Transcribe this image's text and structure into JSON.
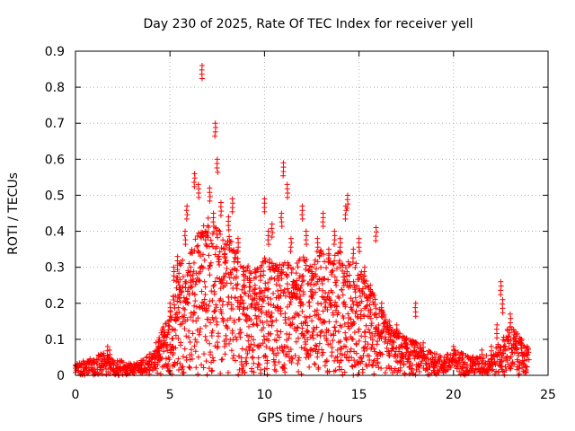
{
  "chart_data": {
    "type": "scatter",
    "title": "Day 230 of 2025, Rate Of TEC Index for receiver yell",
    "xlabel": "GPS time / hours",
    "ylabel": "ROTI / TECUs",
    "xlim": [
      0,
      25
    ],
    "ylim": [
      0,
      0.9
    ],
    "xticks": [
      "0",
      "5",
      "10",
      "15",
      "20",
      "25"
    ],
    "yticks": [
      "0",
      "0.1",
      "0.2",
      "0.3",
      "0.4",
      "0.5",
      "0.6",
      "0.7",
      "0.8",
      "0.9"
    ],
    "grid": true,
    "marker": "+",
    "color": "#ff0000",
    "series": [
      {
        "values": [
          [
            0.0,
            0.02
          ],
          [
            0.3,
            0.01
          ],
          [
            0.6,
            0.03
          ],
          [
            1.0,
            0.02
          ],
          [
            1.4,
            0.04
          ],
          [
            1.7,
            0.08
          ],
          [
            1.8,
            0.07
          ],
          [
            2.2,
            0.03
          ],
          [
            2.7,
            0.03
          ],
          [
            3.1,
            0.02
          ],
          [
            3.5,
            0.03
          ],
          [
            3.9,
            0.04
          ],
          [
            4.2,
            0.06
          ],
          [
            4.4,
            0.08
          ],
          [
            4.7,
            0.12
          ],
          [
            4.9,
            0.15
          ],
          [
            5.0,
            0.2
          ],
          [
            5.2,
            0.3
          ],
          [
            5.4,
            0.33
          ],
          [
            5.5,
            0.25
          ],
          [
            5.8,
            0.4
          ],
          [
            5.9,
            0.47
          ],
          [
            6.1,
            0.3
          ],
          [
            6.3,
            0.56
          ],
          [
            6.5,
            0.53
          ],
          [
            6.7,
            0.86
          ],
          [
            6.9,
            0.4
          ],
          [
            7.1,
            0.52
          ],
          [
            7.3,
            0.45
          ],
          [
            7.4,
            0.7
          ],
          [
            7.5,
            0.6
          ],
          [
            7.7,
            0.48
          ],
          [
            7.9,
            0.35
          ],
          [
            8.1,
            0.44
          ],
          [
            8.3,
            0.49
          ],
          [
            8.6,
            0.38
          ],
          [
            8.9,
            0.3
          ],
          [
            9.2,
            0.27
          ],
          [
            9.5,
            0.25
          ],
          [
            9.8,
            0.3
          ],
          [
            10.0,
            0.49
          ],
          [
            10.2,
            0.4
          ],
          [
            10.4,
            0.42
          ],
          [
            10.7,
            0.3
          ],
          [
            10.9,
            0.45
          ],
          [
            11.0,
            0.59
          ],
          [
            11.2,
            0.53
          ],
          [
            11.4,
            0.38
          ],
          [
            11.7,
            0.25
          ],
          [
            12.0,
            0.47
          ],
          [
            12.2,
            0.4
          ],
          [
            12.5,
            0.3
          ],
          [
            12.8,
            0.38
          ],
          [
            13.1,
            0.45
          ],
          [
            13.4,
            0.35
          ],
          [
            13.7,
            0.4
          ],
          [
            14.0,
            0.38
          ],
          [
            14.3,
            0.47
          ],
          [
            14.4,
            0.5
          ],
          [
            14.7,
            0.35
          ],
          [
            15.0,
            0.38
          ],
          [
            15.3,
            0.3
          ],
          [
            15.6,
            0.25
          ],
          [
            15.9,
            0.41
          ],
          [
            16.2,
            0.2
          ],
          [
            16.6,
            0.15
          ],
          [
            17.0,
            0.14
          ],
          [
            17.5,
            0.1
          ],
          [
            18.0,
            0.2
          ],
          [
            18.4,
            0.09
          ],
          [
            19.0,
            0.06
          ],
          [
            19.5,
            0.05
          ],
          [
            20.0,
            0.08
          ],
          [
            20.5,
            0.06
          ],
          [
            21.0,
            0.05
          ],
          [
            21.5,
            0.07
          ],
          [
            22.0,
            0.08
          ],
          [
            22.3,
            0.14
          ],
          [
            22.5,
            0.26
          ],
          [
            22.6,
            0.21
          ],
          [
            23.0,
            0.17
          ],
          [
            23.3,
            0.12
          ],
          [
            23.6,
            0.1
          ],
          [
            23.9,
            0.08
          ]
        ],
        "envelope": [
          [
            0.0,
            0.03
          ],
          [
            0.5,
            0.04
          ],
          [
            1.0,
            0.05
          ],
          [
            1.5,
            0.06
          ],
          [
            2.0,
            0.04
          ],
          [
            2.5,
            0.04
          ],
          [
            3.0,
            0.03
          ],
          [
            3.5,
            0.04
          ],
          [
            4.0,
            0.06
          ],
          [
            4.5,
            0.11
          ],
          [
            5.0,
            0.18
          ],
          [
            5.5,
            0.3
          ],
          [
            6.0,
            0.33
          ],
          [
            6.5,
            0.38
          ],
          [
            7.0,
            0.42
          ],
          [
            7.5,
            0.4
          ],
          [
            8.0,
            0.38
          ],
          [
            8.5,
            0.34
          ],
          [
            9.0,
            0.3
          ],
          [
            9.5,
            0.28
          ],
          [
            10.0,
            0.33
          ],
          [
            10.5,
            0.3
          ],
          [
            11.0,
            0.32
          ],
          [
            11.5,
            0.28
          ],
          [
            12.0,
            0.32
          ],
          [
            12.5,
            0.3
          ],
          [
            13.0,
            0.34
          ],
          [
            13.5,
            0.32
          ],
          [
            14.0,
            0.33
          ],
          [
            14.5,
            0.3
          ],
          [
            15.0,
            0.3
          ],
          [
            15.5,
            0.24
          ],
          [
            16.0,
            0.2
          ],
          [
            16.5,
            0.14
          ],
          [
            17.0,
            0.12
          ],
          [
            17.5,
            0.1
          ],
          [
            18.0,
            0.09
          ],
          [
            18.5,
            0.07
          ],
          [
            19.0,
            0.06
          ],
          [
            19.5,
            0.05
          ],
          [
            20.0,
            0.07
          ],
          [
            20.5,
            0.06
          ],
          [
            21.0,
            0.05
          ],
          [
            21.5,
            0.05
          ],
          [
            22.0,
            0.06
          ],
          [
            22.5,
            0.09
          ],
          [
            23.0,
            0.14
          ],
          [
            23.5,
            0.1
          ],
          [
            24.0,
            0.07
          ]
        ]
      }
    ]
  }
}
